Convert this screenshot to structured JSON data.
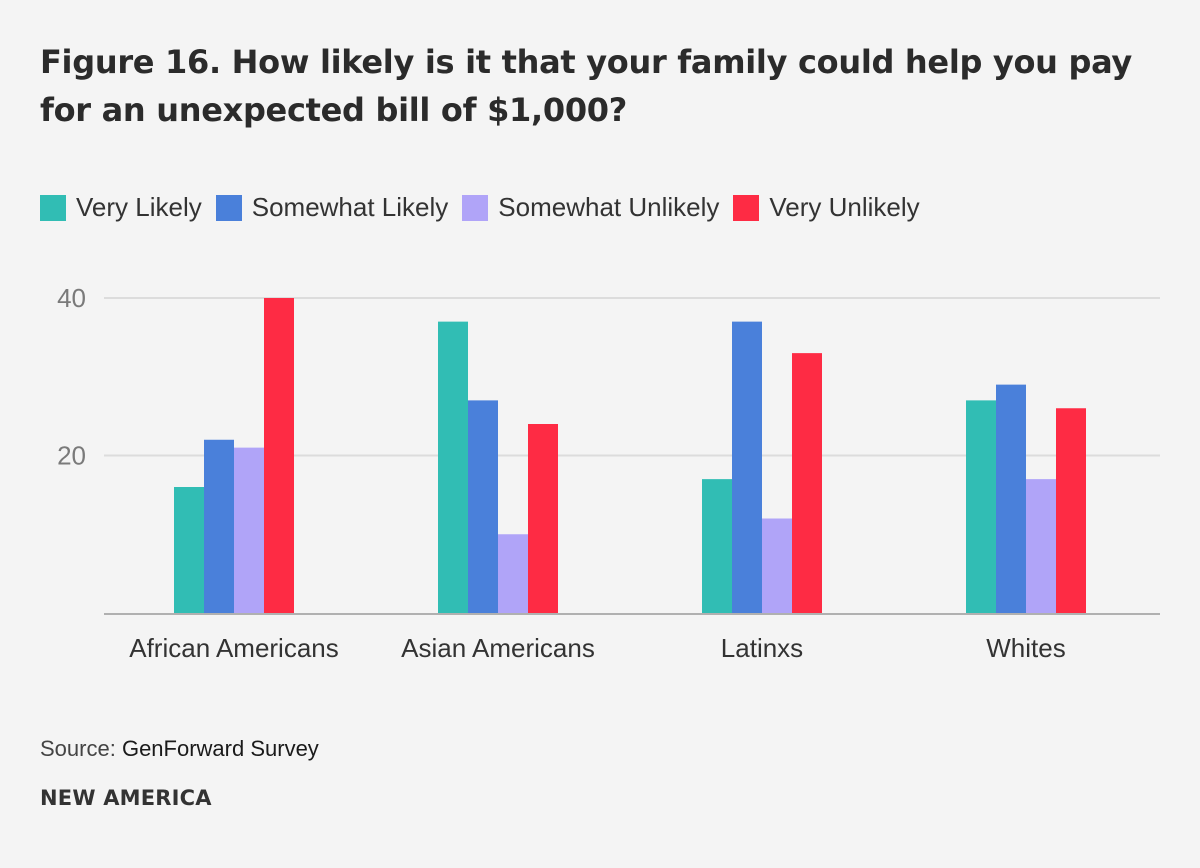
{
  "chart_data": {
    "type": "bar",
    "title": "Figure 16. How likely is it that your family could help you pay for an unexpected bill of $1,000?",
    "xlabel": "",
    "ylabel": "",
    "ylim": [
      0,
      40
    ],
    "yticks": [
      20,
      40
    ],
    "grid": true,
    "legend_position": "top-left",
    "categories": [
      "African Americans",
      "Asian Americans",
      "Latinxs",
      "Whites"
    ],
    "series": [
      {
        "name": "Very Likely",
        "color": "#31bdb4",
        "values": [
          16,
          37,
          17,
          27
        ]
      },
      {
        "name": "Somewhat Likely",
        "color": "#4a80da",
        "values": [
          22,
          27,
          37,
          29
        ]
      },
      {
        "name": "Somewhat Unlikely",
        "color": "#b0a4f8",
        "values": [
          21,
          10,
          12,
          17
        ]
      },
      {
        "name": "Very Unlikely",
        "color": "#fe2b44",
        "values": [
          40,
          24,
          33,
          26
        ]
      }
    ]
  },
  "footer": {
    "source_prefix": "Source:",
    "source_name": "GenForward Survey",
    "brand": "NEW AMERICA"
  }
}
